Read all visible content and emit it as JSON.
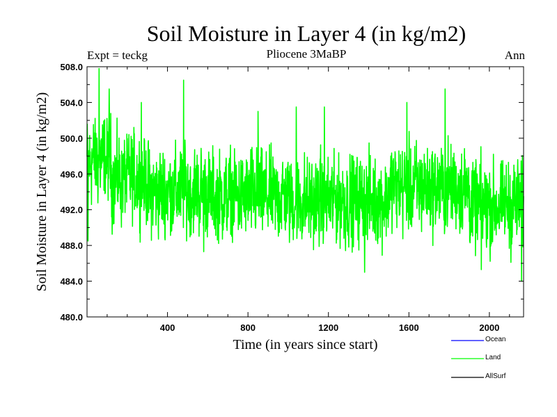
{
  "chart_data": {
    "type": "line",
    "title": "Soil Moisture in Layer 4 (in kg/m2)",
    "subtitle_left": "Expt = teckg",
    "subtitle_center": "Pliocene   3MaBP",
    "subtitle_right": "Ann",
    "xlabel": "Time (in years since start)",
    "ylabel": "Soil Moisture in Layer 4 (in kg/m2)",
    "xlim": [
      0,
      2170
    ],
    "ylim": [
      480.0,
      508.0
    ],
    "xticks": [
      400,
      800,
      1200,
      1600,
      2000
    ],
    "xtick_labels": [
      "400",
      "800",
      "1200",
      "1600",
      "2000"
    ],
    "yticks": [
      480.0,
      484.0,
      488.0,
      492.0,
      496.0,
      500.0,
      504.0,
      508.0
    ],
    "ytick_labels": [
      "480.0",
      "484.0",
      "488.0",
      "492.0",
      "496.0",
      "500.0",
      "504.0",
      "508.0"
    ],
    "series": [
      {
        "name": "Ocean",
        "color": "#0000ff",
        "values": []
      },
      {
        "name": "Land",
        "color": "#00ff00",
        "approximate": true,
        "samples_per_year": 1,
        "segment_means": [
          {
            "x_start": 0,
            "x_end": 120,
            "mean": 497.5
          },
          {
            "x_start": 120,
            "x_end": 300,
            "mean": 495.5
          },
          {
            "x_start": 300,
            "x_end": 600,
            "mean": 494.0
          },
          {
            "x_start": 600,
            "x_end": 1000,
            "mean": 493.5
          },
          {
            "x_start": 1000,
            "x_end": 1500,
            "mean": 493.0
          },
          {
            "x_start": 1500,
            "x_end": 1900,
            "mean": 494.5
          },
          {
            "x_start": 1900,
            "x_end": 2170,
            "mean": 492.5
          }
        ],
        "peaks": [
          {
            "x": 5,
            "y": 488.5
          },
          {
            "x": 60,
            "y": 507.8
          },
          {
            "x": 110,
            "y": 505.5
          },
          {
            "x": 270,
            "y": 504.0
          },
          {
            "x": 480,
            "y": 506.5
          },
          {
            "x": 580,
            "y": 487.3
          },
          {
            "x": 850,
            "y": 503.0
          },
          {
            "x": 1040,
            "y": 503.5
          },
          {
            "x": 1180,
            "y": 503.5
          },
          {
            "x": 1380,
            "y": 485.0
          },
          {
            "x": 1590,
            "y": 504.0
          },
          {
            "x": 1780,
            "y": 505.5
          },
          {
            "x": 1960,
            "y": 485.3
          },
          {
            "x": 2160,
            "y": 484.0
          }
        ]
      },
      {
        "name": "AllSurf",
        "color": "#000000",
        "values": []
      }
    ],
    "legend": [
      "Ocean",
      "Land",
      "AllSurf"
    ],
    "legend_position": "bottom-right",
    "grid": false
  }
}
